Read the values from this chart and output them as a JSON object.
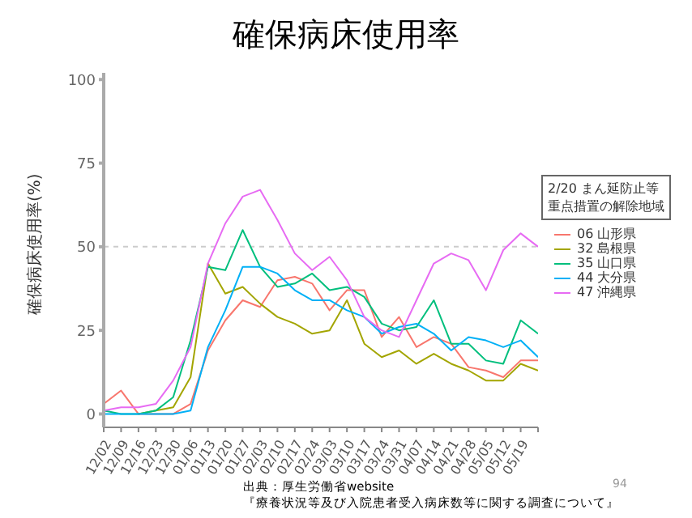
{
  "chart_data": {
    "type": "line",
    "title": "確保病床使用率",
    "ylabel": "確保病床使用率(%)",
    "legend_title": "2/20 まん延防止等重点措置の解除地域",
    "categories": [
      "12/02",
      "12/09",
      "12/16",
      "12/23",
      "12/30",
      "01/06",
      "01/13",
      "01/20",
      "01/27",
      "02/03",
      "02/10",
      "02/17",
      "02/24",
      "03/03",
      "03/10",
      "03/17",
      "03/24",
      "03/31",
      "04/07",
      "04/14",
      "04/21",
      "04/28",
      "05/05",
      "05/12",
      "05/19",
      null
    ],
    "series": [
      {
        "name": "06 山形県",
        "color": "#f8766d",
        "values": [
          3,
          7,
          0,
          0,
          0,
          3,
          19,
          28,
          34,
          32,
          40,
          41,
          39,
          31,
          37,
          37,
          23,
          29,
          20,
          23,
          21,
          14,
          13,
          11,
          16,
          16
        ]
      },
      {
        "name": "32 島根県",
        "color": "#a3a500",
        "values": [
          null,
          null,
          0,
          1,
          2,
          11,
          45,
          36,
          38,
          33,
          29,
          27,
          24,
          25,
          34,
          21,
          17,
          19,
          15,
          18,
          15,
          13,
          10,
          10,
          15,
          13
        ]
      },
      {
        "name": "35 山口県",
        "color": "#00bf7d",
        "values": [
          1,
          0,
          0,
          1,
          5,
          22,
          44,
          43,
          55,
          44,
          38,
          39,
          42,
          37,
          38,
          35,
          27,
          25,
          26,
          34,
          21,
          21,
          16,
          15,
          28,
          24
        ]
      },
      {
        "name": "44 大分県",
        "color": "#00b0f6",
        "values": [
          0,
          0,
          0,
          0,
          0,
          1,
          20,
          31,
          44,
          44,
          42,
          37,
          34,
          34,
          31,
          29,
          24,
          26,
          27,
          24,
          19,
          23,
          22,
          20,
          22,
          17
        ]
      },
      {
        "name": "47 沖縄県",
        "color": "#e76bf3",
        "values": [
          1,
          2,
          2,
          3,
          10,
          20,
          45,
          57,
          65,
          67,
          58,
          48,
          43,
          47,
          40,
          29,
          25,
          23,
          34,
          45,
          48,
          46,
          37,
          49,
          54,
          50
        ]
      }
    ],
    "ylim": [
      -4,
      102
    ],
    "yticks": [
      0,
      25,
      50,
      75,
      100
    ],
    "grid": false,
    "legend": "right",
    "marker": "none",
    "line_style": "solid",
    "ref_lines": [
      {
        "axis": "y",
        "value": 50,
        "color": "#cccccc",
        "line_style": "dashed"
      }
    ],
    "annotations": [
      "94",
      "出典：厚生労働省website",
      "『療養状況等及び入院患者受入病床数等に関する調査について』"
    ]
  }
}
